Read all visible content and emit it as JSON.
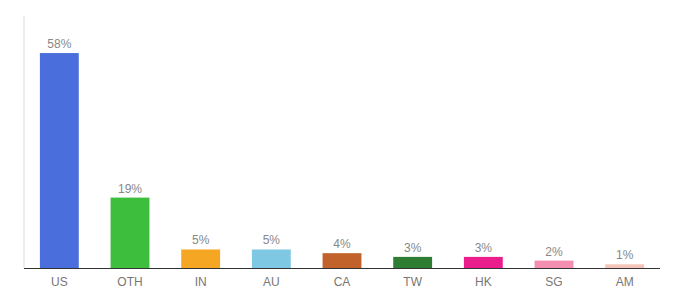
{
  "chart_data": {
    "type": "bar",
    "categories": [
      "US",
      "OTH",
      "IN",
      "AU",
      "CA",
      "TW",
      "HK",
      "SG",
      "AM"
    ],
    "values": [
      58,
      19,
      5,
      5,
      4,
      3,
      3,
      2,
      1
    ],
    "value_labels": [
      "58%",
      "19%",
      "5%",
      "5%",
      "4%",
      "3%",
      "3%",
      "2%",
      "1%"
    ],
    "colors": [
      "#4a6fdc",
      "#3dbf3d",
      "#f5a623",
      "#7ec8e3",
      "#c0622a",
      "#2e7d32",
      "#e91e8c",
      "#f48fb1",
      "#f4c4b8"
    ],
    "ylim": [
      0,
      68
    ],
    "data_labels": true,
    "tick_labels": "x",
    "grid": false
  }
}
